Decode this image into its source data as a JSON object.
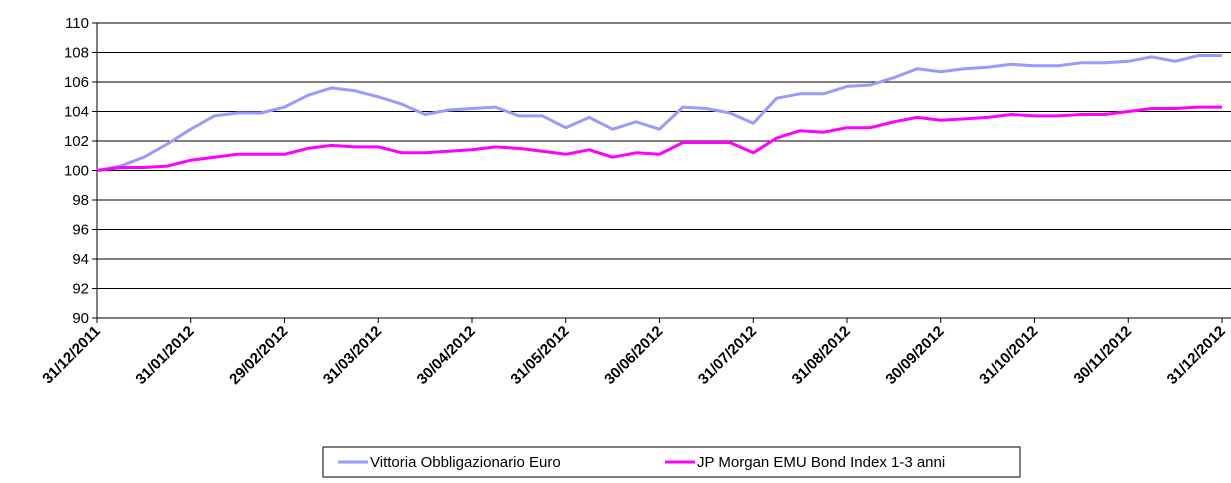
{
  "chart_data": {
    "type": "line",
    "categories": [
      "31/12/2011",
      null,
      null,
      null,
      "31/01/2012",
      null,
      null,
      null,
      "29/02/2012",
      null,
      null,
      null,
      "31/03/2012",
      null,
      null,
      null,
      "30/04/2012",
      null,
      null,
      null,
      "31/05/2012",
      null,
      null,
      null,
      "30/06/2012",
      null,
      null,
      null,
      "31/07/2012",
      null,
      null,
      null,
      "31/08/2012",
      null,
      null,
      null,
      "30/09/2012",
      null,
      null,
      null,
      "31/10/2012",
      null,
      null,
      null,
      "30/11/2012",
      null,
      null,
      null,
      "31/12/2012"
    ],
    "series": [
      {
        "name": "Vittoria Obbligazionario Euro",
        "color": "#9999ff",
        "values": [
          100,
          100.3,
          100.9,
          101.8,
          102.8,
          103.7,
          103.9,
          103.9,
          104.3,
          105.1,
          105.6,
          105.4,
          105.0,
          104.5,
          103.8,
          104.1,
          104.2,
          104.3,
          103.7,
          103.7,
          102.9,
          103.6,
          102.8,
          103.3,
          102.8,
          104.3,
          104.2,
          103.9,
          103.2,
          104.9,
          105.2,
          105.2,
          105.7,
          105.8,
          106.3,
          106.9,
          106.7,
          106.9,
          107.0,
          107.2,
          107.1,
          107.1,
          107.3,
          107.3,
          107.4,
          107.7,
          107.4,
          107.8,
          107.8
        ]
      },
      {
        "name": "JP Morgan EMU Bond Index 1-3 anni",
        "color": "#ff00ff",
        "values": [
          100,
          100.2,
          100.2,
          100.3,
          100.7,
          100.9,
          101.1,
          101.1,
          101.1,
          101.5,
          101.7,
          101.6,
          101.6,
          101.2,
          101.2,
          101.3,
          101.4,
          101.6,
          101.5,
          101.3,
          101.1,
          101.4,
          100.9,
          101.2,
          101.1,
          101.9,
          101.9,
          101.9,
          101.2,
          102.2,
          102.7,
          102.6,
          102.9,
          102.9,
          103.3,
          103.6,
          103.4,
          103.5,
          103.6,
          103.8,
          103.7,
          103.7,
          103.8,
          103.8,
          104.0,
          104.2,
          104.2,
          104.3,
          104.3
        ]
      }
    ],
    "ylim": [
      90,
      110
    ],
    "yticks": [
      90,
      92,
      94,
      96,
      98,
      100,
      102,
      104,
      106,
      108,
      110
    ],
    "grid": true,
    "legend": "bottom"
  }
}
